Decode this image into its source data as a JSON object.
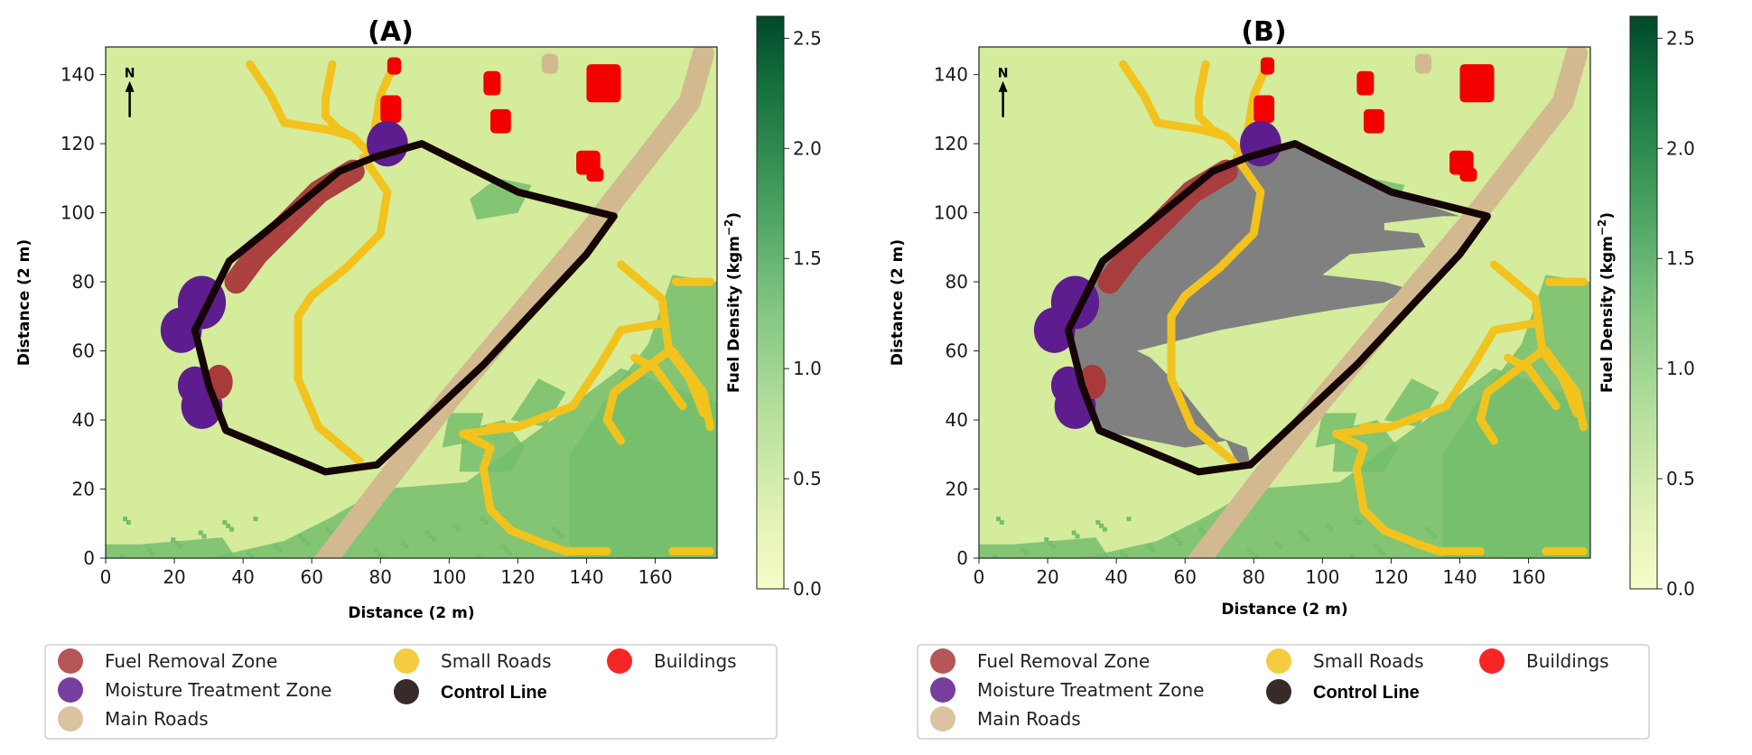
{
  "colors": {
    "background_fuel": "#d4ec9c",
    "dense_fuel": "#74be6c",
    "burned_area": "#808080",
    "fuel_removal_zone": "#a9393a",
    "moisture_treatment_zone": "#5e1d8e",
    "main_roads": "#d2b98f",
    "small_roads": "#f2c31d",
    "buildings": "#f40000",
    "control_line": "#150506"
  },
  "colorbar": {
    "label": "Fuel Density (kgm^-2)",
    "colormap": "Greens",
    "ticks": [
      "0.0",
      "0.5",
      "1.0",
      "1.5",
      "2.0",
      "2.5"
    ],
    "range": [
      0.0,
      2.6
    ]
  },
  "legend_items": [
    {
      "label": "Fuel Removal Zone",
      "color_key": "fuel_removal_zone",
      "bold": false
    },
    {
      "label": "Moisture Treatment Zone",
      "color_key": "moisture_treatment_zone",
      "bold": false
    },
    {
      "label": "Main Roads",
      "color_key": "main_roads",
      "bold": false
    },
    {
      "label": "Small Roads",
      "color_key": "small_roads",
      "bold": false
    },
    {
      "label": "Control Line",
      "color_key": "control_line",
      "bold": true
    },
    {
      "label": "Buildings",
      "color_key": "buildings",
      "bold": false
    }
  ],
  "north_arrow": "N",
  "chart_data": [
    {
      "type": "heatmap",
      "title": "(A)",
      "xlabel": "Distance (2 m)",
      "ylabel": "Distance (2 m)",
      "xlim": [
        0,
        178
      ],
      "ylim": [
        0,
        148
      ],
      "xticks": [
        "0",
        "20",
        "40",
        "60",
        "80",
        "100",
        "120",
        "140",
        "160"
      ],
      "yticks": [
        "0",
        "20",
        "40",
        "60",
        "80",
        "100",
        "120",
        "140"
      ],
      "burned_area_shown": false,
      "control_line": [
        [
          92,
          120
        ],
        [
          78,
          116
        ],
        [
          68,
          112
        ],
        [
          46,
          94
        ],
        [
          36,
          86
        ],
        [
          26,
          66
        ],
        [
          30,
          50
        ],
        [
          35,
          37
        ],
        [
          64,
          25
        ],
        [
          79,
          27
        ],
        [
          110,
          56
        ],
        [
          140,
          88
        ],
        [
          148,
          99
        ],
        [
          120,
          106
        ],
        [
          92,
          120
        ]
      ]
    },
    {
      "type": "heatmap",
      "title": "(B)",
      "xlabel": "Distance (2 m)",
      "ylabel": "Distance (2 m)",
      "xlim": [
        0,
        178
      ],
      "ylim": [
        0,
        148
      ],
      "xticks": [
        "0",
        "20",
        "40",
        "60",
        "80",
        "100",
        "120",
        "140",
        "160"
      ],
      "yticks": [
        "0",
        "20",
        "40",
        "60",
        "80",
        "100",
        "120",
        "140"
      ],
      "burned_area_shown": true,
      "control_line": [
        [
          92,
          120
        ],
        [
          78,
          116
        ],
        [
          68,
          112
        ],
        [
          46,
          94
        ],
        [
          36,
          86
        ],
        [
          26,
          66
        ],
        [
          30,
          50
        ],
        [
          35,
          37
        ],
        [
          64,
          25
        ],
        [
          79,
          27
        ],
        [
          110,
          56
        ],
        [
          140,
          88
        ],
        [
          148,
          99
        ],
        [
          120,
          106
        ],
        [
          92,
          120
        ]
      ]
    }
  ]
}
